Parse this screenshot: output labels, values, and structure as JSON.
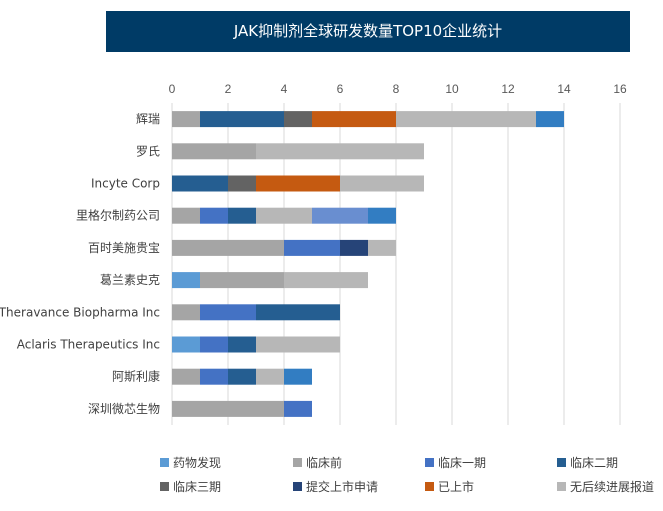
{
  "chart_data": {
    "type": "bar",
    "orientation": "horizontal",
    "stacked": true,
    "title": "JAK抑制剂全球研发数量TOP10企业统计",
    "xlabel": "",
    "ylabel": "",
    "xlim": [
      0,
      16
    ],
    "xticks": [
      "0",
      "2",
      "4",
      "6",
      "8",
      "10",
      "12",
      "14",
      "16"
    ],
    "grid": true,
    "legend_position": "bottom",
    "categories": [
      "辉瑞",
      "罗氏",
      "Incyte Corp",
      "里格尔制药公司",
      "百时美施贵宝",
      "葛兰素史克",
      "Theravance Biopharma Inc",
      "Aclaris  Therapeutics Inc",
      "阿斯利康",
      "深圳微芯生物"
    ],
    "series": [
      {
        "name": "药物发现",
        "color": "#5b9bd5",
        "values": [
          0,
          0,
          0,
          0,
          0,
          1,
          0,
          1,
          0,
          0
        ]
      },
      {
        "name": "临床前",
        "color": "#a5a5a5",
        "values": [
          1,
          3,
          0,
          1,
          4,
          3,
          1,
          0,
          1,
          4
        ]
      },
      {
        "name": "临床一期",
        "color": "#4472c4",
        "values": [
          0,
          0,
          0,
          1,
          2,
          0,
          2,
          1,
          1,
          1
        ]
      },
      {
        "name": "临床二期",
        "color": "#255e91",
        "values": [
          3,
          0,
          2,
          1,
          0,
          0,
          3,
          1,
          1,
          0
        ]
      },
      {
        "name": "临床三期",
        "color": "#636363",
        "values": [
          1,
          0,
          1,
          0,
          0,
          0,
          0,
          0,
          0,
          0
        ]
      },
      {
        "name": "提交上市申请",
        "color": "#264478",
        "values": [
          0,
          0,
          0,
          0,
          1,
          0,
          0,
          0,
          0,
          0
        ]
      },
      {
        "name": "已上市",
        "color": "#c55a11",
        "values": [
          3,
          0,
          3,
          0,
          0,
          0,
          0,
          0,
          0,
          0
        ]
      },
      {
        "name": "无后续进展报道",
        "color": "#b7b7b7",
        "values": [
          5,
          6,
          3,
          2,
          1,
          3,
          0,
          3,
          1,
          0
        ]
      },
      {
        "name": "",
        "color": "#698ed0",
        "values": [
          0,
          0,
          0,
          2,
          0,
          0,
          0,
          0,
          0,
          0
        ]
      },
      {
        "name": "",
        "color": "#327dc2",
        "values": [
          1,
          0,
          0,
          1,
          0,
          0,
          0,
          0,
          1,
          0
        ]
      }
    ]
  }
}
